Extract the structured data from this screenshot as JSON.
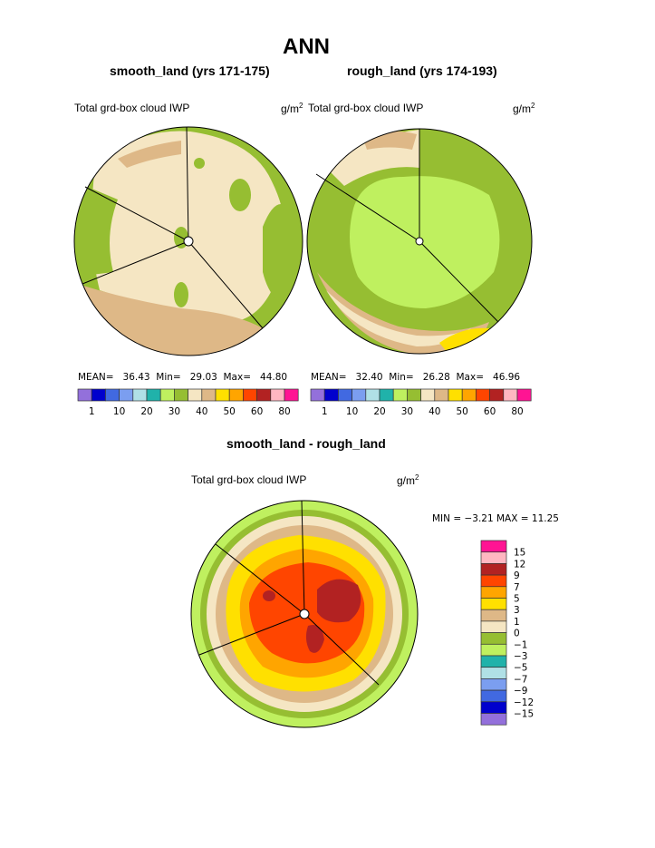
{
  "title": "ANN",
  "colors": [
    "#9370DB",
    "#0000CD",
    "#4169E1",
    "#7B9EF0",
    "#B0E0E6",
    "#20B2AA",
    "#BFF05F",
    "#96BE32",
    "#F5E6C3",
    "#DEB887",
    "#FFE000",
    "#FFA500",
    "#FF4500",
    "#B22222",
    "#FFB6C1",
    "#FF1493"
  ],
  "chart_data": [
    {
      "type": "heatmap",
      "projection": "polar",
      "title": "smooth_land (yrs 171-175)",
      "variable": "Total grd-box cloud IWP",
      "units": "g/m",
      "units_sup": "2",
      "stats": {
        "mean_label": "MEAN=",
        "mean": "36.43",
        "min_label": "Min=",
        "min": "29.03",
        "max_label": "Max=",
        "max": "44.80"
      },
      "levels": [
        "1",
        "10",
        "20",
        "30",
        "40",
        "50",
        "60",
        "80"
      ]
    },
    {
      "type": "heatmap",
      "projection": "polar",
      "title": "rough_land (yrs 174-193)",
      "variable": "Total grd-box cloud IWP",
      "units": "g/m",
      "units_sup": "2",
      "stats": {
        "mean_label": "MEAN=",
        "mean": "32.40",
        "min_label": "Min=",
        "min": "26.28",
        "max_label": "Max=",
        "max": "46.96"
      },
      "levels": [
        "1",
        "10",
        "20",
        "30",
        "40",
        "50",
        "60",
        "80"
      ]
    },
    {
      "type": "heatmap",
      "projection": "polar",
      "title": "smooth_land - rough_land",
      "variable": "Total grd-box cloud IWP",
      "units": "g/m",
      "units_sup": "2",
      "stats": {
        "text": "MIN =  −3.21  MAX =   11.25"
      },
      "levels": [
        "15",
        "12",
        "9",
        "7",
        "5",
        "3",
        "1",
        "0",
        "−1",
        "−3",
        "−5",
        "−7",
        "−9",
        "−12",
        "−15"
      ]
    }
  ]
}
